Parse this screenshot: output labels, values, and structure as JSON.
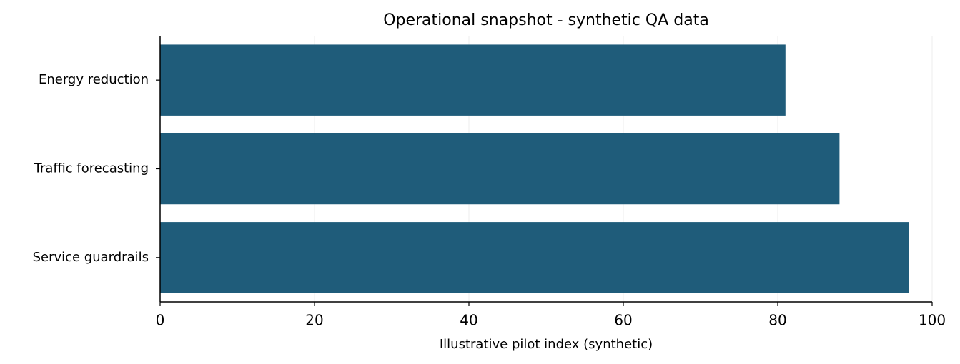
{
  "chart_data": {
    "type": "hbar",
    "title": "Operational snapshot - synthetic QA data",
    "xlabel": "Illustrative pilot index (synthetic)",
    "categories": [
      "Energy reduction",
      "Traffic forecasting",
      "Service guardrails"
    ],
    "values": [
      81,
      88,
      97
    ],
    "color": "#1f5c7a",
    "xlim": [
      0,
      100
    ],
    "xticks": [
      0,
      20,
      40,
      60,
      80,
      100
    ],
    "grid": true
  }
}
